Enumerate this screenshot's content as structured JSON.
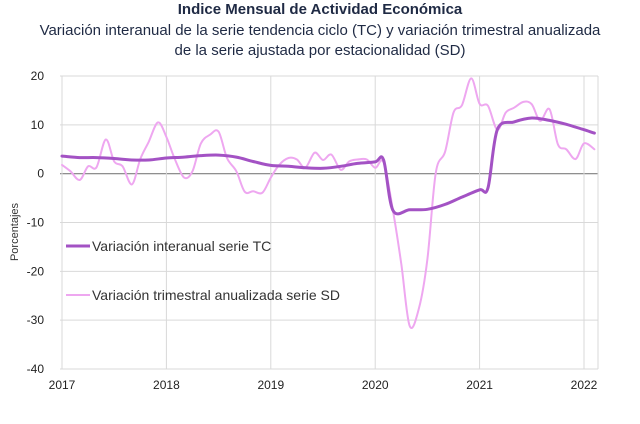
{
  "title": "Indice Mensual de  Actividad Económica",
  "subtitle_line1": "Variación interanual de la serie tendencia ciclo (TC) y variación trimestral anualizada",
  "subtitle_line2": "de la serie ajustada por estacionalidad (SD)",
  "colors": {
    "tc": "#a352c4",
    "sd": "#eea7f0",
    "grid": "#d9d9d9",
    "zero": "#7f7f7f",
    "negative_tick": "#e03030"
  },
  "chart_data": {
    "type": "line",
    "ylabel": "Porcentajes",
    "ylim": [
      -40,
      20
    ],
    "xlim": [
      2017,
      2022.2
    ],
    "yticks": [
      20,
      10,
      0,
      -10,
      -20,
      -30,
      -40
    ],
    "xticks": [
      2017,
      2018,
      2019,
      2020,
      2021,
      2022
    ],
    "grid": true,
    "legend_position": "left-middle",
    "series": [
      {
        "name": "Variación interanual serie TC",
        "key": "tc",
        "x": [
          2017.0,
          2017.17,
          2017.33,
          2017.5,
          2017.67,
          2017.83,
          2018.0,
          2018.17,
          2018.33,
          2018.5,
          2018.67,
          2018.83,
          2019.0,
          2019.17,
          2019.33,
          2019.5,
          2019.67,
          2019.83,
          2020.0,
          2020.08,
          2020.17,
          2020.33,
          2020.5,
          2020.67,
          2020.83,
          2021.0,
          2021.08,
          2021.17,
          2021.33,
          2021.5,
          2021.67,
          2021.83,
          2022.0,
          2022.1
        ],
        "y": [
          3.6,
          3.3,
          3.3,
          3.1,
          2.8,
          2.8,
          3.2,
          3.4,
          3.7,
          3.8,
          3.4,
          2.5,
          1.7,
          1.5,
          1.2,
          1.1,
          1.5,
          2.1,
          2.4,
          2.8,
          -7.5,
          -7.4,
          -7.3,
          -6.3,
          -4.8,
          -3.3,
          -2.9,
          9.0,
          10.6,
          11.4,
          10.9,
          10.1,
          9.0,
          8.3
        ]
      },
      {
        "name": "Variación trimestral anualizada serie SD",
        "key": "sd",
        "x": [
          2017.0,
          2017.08,
          2017.17,
          2017.25,
          2017.33,
          2017.42,
          2017.5,
          2017.58,
          2017.67,
          2017.75,
          2017.83,
          2017.92,
          2018.0,
          2018.08,
          2018.17,
          2018.25,
          2018.33,
          2018.42,
          2018.5,
          2018.58,
          2018.67,
          2018.75,
          2018.83,
          2018.92,
          2019.0,
          2019.08,
          2019.17,
          2019.25,
          2019.33,
          2019.42,
          2019.5,
          2019.58,
          2019.67,
          2019.75,
          2019.83,
          2019.92,
          2020.0,
          2020.08,
          2020.17,
          2020.25,
          2020.33,
          2020.42,
          2020.5,
          2020.58,
          2020.67,
          2020.75,
          2020.83,
          2020.92,
          2021.0,
          2021.08,
          2021.17,
          2021.25,
          2021.33,
          2021.42,
          2021.5,
          2021.58,
          2021.67,
          2021.75,
          2021.83,
          2021.92,
          2022.0,
          2022.1
        ],
        "y": [
          1.8,
          0.5,
          -1.3,
          1.5,
          1.3,
          7.0,
          2.5,
          1.5,
          -2.2,
          3.0,
          6.5,
          10.5,
          7.5,
          3.0,
          -0.8,
          0.5,
          6.2,
          8.0,
          8.6,
          3.2,
          0.5,
          -3.7,
          -3.6,
          -3.9,
          -0.8,
          1.8,
          3.2,
          2.9,
          1.2,
          4.3,
          2.8,
          3.9,
          0.8,
          2.5,
          2.9,
          2.9,
          1.2,
          2.3,
          -7.5,
          -18.5,
          -31.2,
          -27.5,
          -17.5,
          0.2,
          4.5,
          12.5,
          14.0,
          19.5,
          14.3,
          13.9,
          9.0,
          12.5,
          13.5,
          14.7,
          14.2,
          10.8,
          13.2,
          6.0,
          5.0,
          3.0,
          6.2,
          5.0
        ]
      }
    ]
  }
}
